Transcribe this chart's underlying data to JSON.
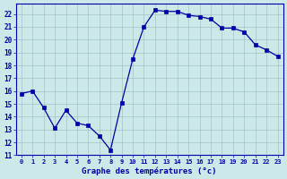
{
  "hours": [
    0,
    1,
    2,
    3,
    4,
    5,
    6,
    7,
    8,
    9,
    10,
    11,
    12,
    13,
    14,
    15,
    16,
    17,
    18,
    19,
    20,
    21,
    22,
    23
  ],
  "temps": [
    15.8,
    16.0,
    14.7,
    13.1,
    14.5,
    13.5,
    13.3,
    12.5,
    11.4,
    15.1,
    18.5,
    21.0,
    22.3,
    22.2,
    22.2,
    21.9,
    21.8,
    21.6,
    20.9,
    20.9,
    20.6,
    19.6,
    19.2,
    18.7
  ],
  "line_color": "#0000aa",
  "marker": "s",
  "marker_size": 2.5,
  "bg_color": "#cce8e8",
  "grid_color": "#99bbbb",
  "xlabel": "Graphe des températures (°c)",
  "ylim": [
    11,
    22.8
  ],
  "yticks": [
    11,
    12,
    13,
    14,
    15,
    16,
    17,
    18,
    19,
    20,
    21,
    22
  ],
  "tick_label_color": "#0000aa",
  "spine_color": "#0000aa"
}
